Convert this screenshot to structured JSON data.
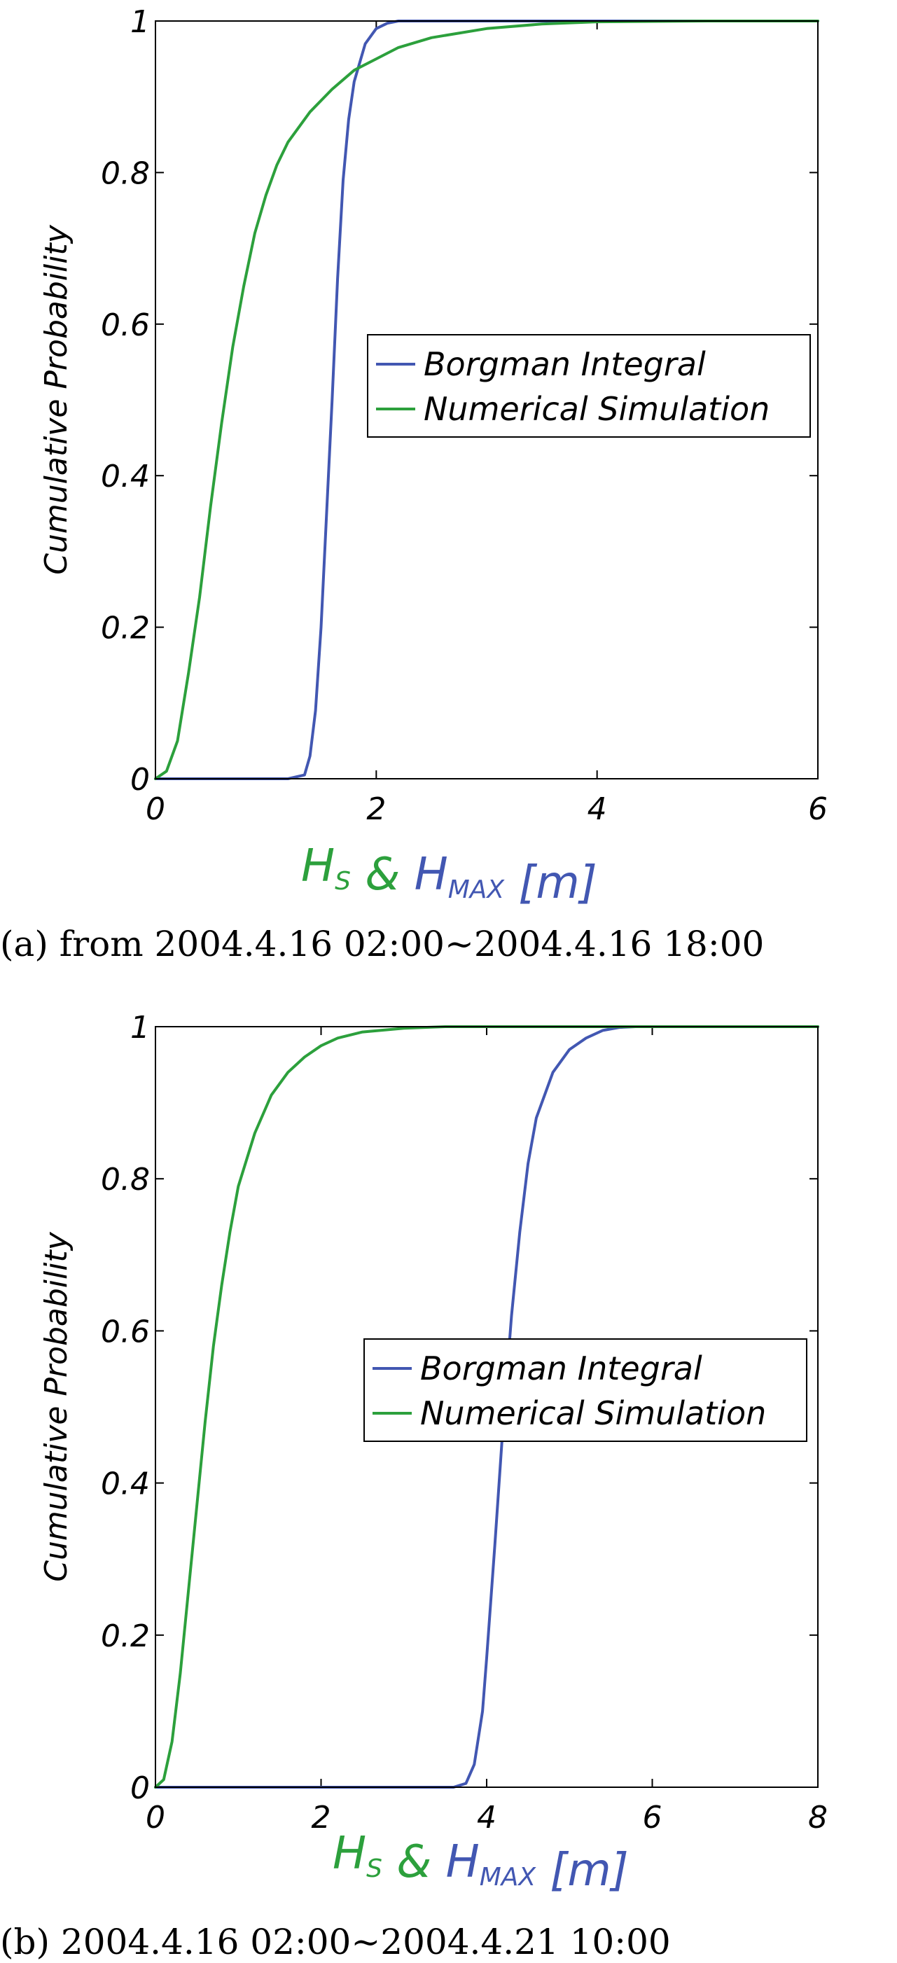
{
  "colors": {
    "borgman": "#4257b2",
    "simulation": "#2ca03c"
  },
  "chart_data": [
    {
      "type": "line",
      "ylabel": "Cumulative Probability",
      "xlabel": {
        "parts": [
          {
            "text": "H",
            "sub": "S",
            "color": "#2ca03c"
          },
          {
            "text": " & ",
            "sub": "",
            "color": "#2ca03c"
          },
          {
            "text": "H",
            "sub": "MAX",
            "color": "#4257b2"
          },
          {
            "text": " [m]",
            "sub": "",
            "color": "#4257b2"
          }
        ]
      },
      "caption": "(a) from 2004.4.16 02:00~2004.4.16 18:00",
      "xlim": [
        0,
        6
      ],
      "ylim": [
        0,
        1
      ],
      "xticks": [
        0,
        2,
        4,
        6
      ],
      "yticks": [
        0,
        0.2,
        0.4,
        0.6,
        0.8,
        1
      ],
      "xtick_labels": [
        "0",
        "2",
        "4",
        "6"
      ],
      "ytick_labels": [
        "0",
        "0.2",
        "0.4",
        "0.6",
        "0.8",
        "1"
      ],
      "legend": "center-right",
      "series": [
        {
          "name": "Borgman Integral",
          "color": "#4257b2",
          "x": [
            0,
            1.2,
            1.35,
            1.4,
            1.45,
            1.5,
            1.55,
            1.6,
            1.65,
            1.7,
            1.75,
            1.8,
            1.9,
            2.0,
            2.1,
            2.2,
            2.5,
            6
          ],
          "y": [
            0,
            0,
            0.005,
            0.03,
            0.09,
            0.2,
            0.35,
            0.5,
            0.66,
            0.79,
            0.87,
            0.92,
            0.97,
            0.99,
            0.997,
            1.0,
            1.0,
            1.0
          ]
        },
        {
          "name": "Numerical Simulation",
          "color": "#2ca03c",
          "x": [
            0,
            0.1,
            0.2,
            0.3,
            0.4,
            0.5,
            0.6,
            0.7,
            0.8,
            0.9,
            1.0,
            1.1,
            1.2,
            1.4,
            1.6,
            1.8,
            2.0,
            2.2,
            2.5,
            3.0,
            3.5,
            4.0,
            5.0,
            6.0
          ],
          "y": [
            0,
            0.01,
            0.05,
            0.14,
            0.24,
            0.36,
            0.47,
            0.57,
            0.65,
            0.72,
            0.77,
            0.81,
            0.84,
            0.88,
            0.91,
            0.935,
            0.95,
            0.965,
            0.978,
            0.99,
            0.996,
            0.999,
            1.0,
            1.0
          ]
        }
      ]
    },
    {
      "type": "line",
      "ylabel": "Cumulative Probability",
      "xlabel": {
        "parts": [
          {
            "text": "H",
            "sub": "S",
            "color": "#2ca03c"
          },
          {
            "text": " & ",
            "sub": "",
            "color": "#2ca03c"
          },
          {
            "text": "H",
            "sub": "MAX",
            "color": "#4257b2"
          },
          {
            "text": " [m]",
            "sub": "",
            "color": "#4257b2"
          }
        ]
      },
      "caption": "(b) 2004.4.16 02:00~2004.4.21 10:00",
      "xlim": [
        0,
        8
      ],
      "ylim": [
        0,
        1
      ],
      "xticks": [
        0,
        2,
        4,
        6,
        8
      ],
      "yticks": [
        0,
        0.2,
        0.4,
        0.6,
        0.8,
        1
      ],
      "xtick_labels": [
        "0",
        "2",
        "4",
        "6",
        "8"
      ],
      "ytick_labels": [
        "0",
        "0.2",
        "0.4",
        "0.6",
        "0.8",
        "1"
      ],
      "legend": "center-right",
      "series": [
        {
          "name": "Borgman Integral",
          "color": "#4257b2",
          "x": [
            0,
            3.6,
            3.75,
            3.85,
            3.95,
            4.0,
            4.1,
            4.2,
            4.3,
            4.4,
            4.5,
            4.6,
            4.8,
            5.0,
            5.2,
            5.4,
            5.6,
            5.8,
            8
          ],
          "y": [
            0,
            0,
            0.005,
            0.03,
            0.1,
            0.17,
            0.32,
            0.48,
            0.62,
            0.73,
            0.82,
            0.88,
            0.94,
            0.97,
            0.985,
            0.995,
            0.999,
            1.0,
            1.0
          ]
        },
        {
          "name": "Numerical Simulation",
          "color": "#2ca03c",
          "x": [
            0,
            0.1,
            0.2,
            0.3,
            0.4,
            0.5,
            0.6,
            0.7,
            0.8,
            0.9,
            1.0,
            1.2,
            1.4,
            1.6,
            1.8,
            2.0,
            2.2,
            2.5,
            3.0,
            3.5,
            4.0,
            8.0
          ],
          "y": [
            0,
            0.01,
            0.06,
            0.15,
            0.26,
            0.37,
            0.48,
            0.58,
            0.66,
            0.73,
            0.79,
            0.86,
            0.91,
            0.94,
            0.96,
            0.975,
            0.985,
            0.993,
            0.998,
            1.0,
            1.0,
            1.0
          ]
        }
      ]
    }
  ]
}
